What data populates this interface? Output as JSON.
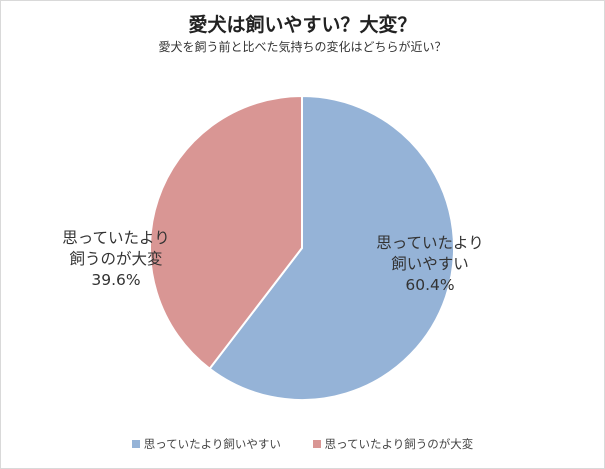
{
  "chart_data": {
    "type": "pie",
    "title": "愛犬は飼いやすい？大変？",
    "subtitle": "愛犬を飼う前と比べた気持ちの変化はどちらが近い？",
    "slices": [
      {
        "line1": "思っていたより",
        "line2": "飼いやすい",
        "legend": "思っていたより飼いやすい",
        "value": 60.4,
        "value_label": "60.4%",
        "color": "#95b3d7"
      },
      {
        "line1": "思っていたより",
        "line2": "飼うのが大変",
        "legend": "思っていたより飼うのが大変",
        "value": 39.6,
        "value_label": "39.6%",
        "color": "#d99694"
      }
    ],
    "legend_position": "bottom"
  }
}
